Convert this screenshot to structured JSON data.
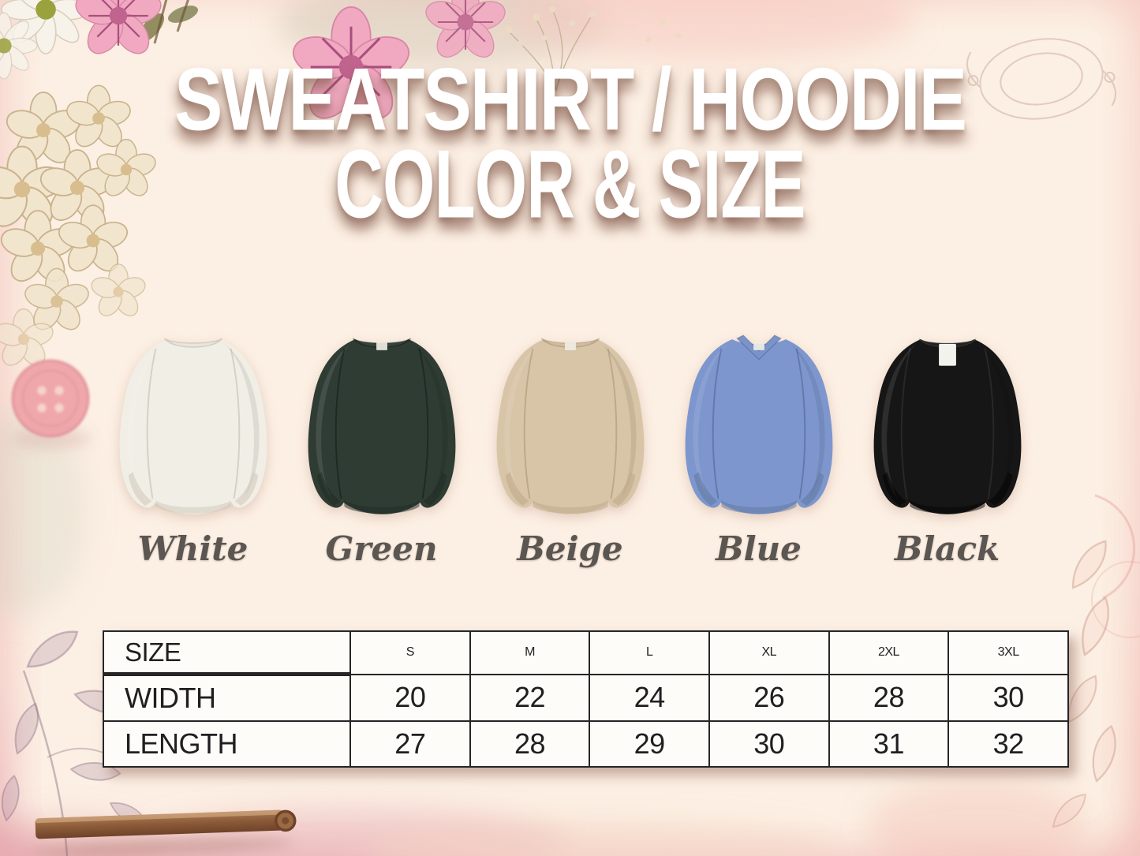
{
  "title": {
    "line1": "SWEATSHIRT / HOODIE",
    "line2": "COLOR & SIZE"
  },
  "colors": [
    {
      "name": "White",
      "body": "#f1eee6",
      "shade": "#cfc7b8",
      "rib": "#e9e5da",
      "seam": "rgba(120,110,95,0.22)",
      "neck": "crew",
      "tag": "none"
    },
    {
      "name": "Green",
      "body": "#2e3c34",
      "shade": "#1f2b25",
      "rib": "#35453c",
      "seam": "rgba(0,0,0,0.30)",
      "neck": "crew",
      "tag": "small"
    },
    {
      "name": "Beige",
      "body": "#d8c5a7",
      "shade": "#bda687",
      "rib": "#d1bc9e",
      "seam": "rgba(110,85,50,0.25)",
      "neck": "crew",
      "tag": "small"
    },
    {
      "name": "Blue",
      "body": "#7d96cd",
      "shade": "#60789f",
      "rib": "#7a93c9",
      "seam": "rgba(40,55,100,0.30)",
      "neck": "v",
      "tag": "small"
    },
    {
      "name": "Black",
      "body": "#161616",
      "shade": "#040404",
      "rib": "#222222",
      "seam": "rgba(255,255,255,0.08)",
      "neck": "crew",
      "tag": "large"
    }
  ],
  "size_table": {
    "header": [
      "SIZE",
      "S",
      "M",
      "L",
      "XL",
      "2XL",
      "3XL"
    ],
    "rows": [
      {
        "label": "WIDTH",
        "values": [
          "20",
          "22",
          "24",
          "26",
          "28",
          "30"
        ]
      },
      {
        "label": "LENGTH",
        "values": [
          "27",
          "28",
          "29",
          "30",
          "31",
          "32"
        ]
      }
    ]
  },
  "accent_colors": {
    "frame_pink": "#f6d2cb",
    "panel_peach": "#fcefe3",
    "label_gray": "#5b5651",
    "title_white": "#ffffff"
  }
}
